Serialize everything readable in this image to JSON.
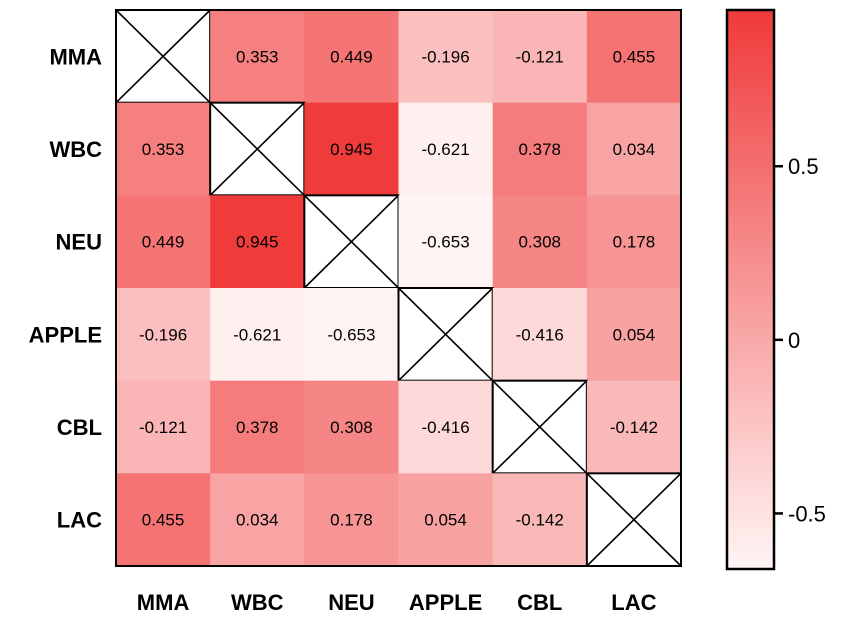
{
  "chart_data": {
    "type": "heatmap",
    "title": "",
    "xlabel": "",
    "ylabel": "",
    "rows": [
      "MMA",
      "WBC",
      "NEU",
      "APPLE",
      "CBL",
      "LAC"
    ],
    "columns": [
      "MMA",
      "WBC",
      "NEU",
      "APPLE",
      "CBL",
      "LAC"
    ],
    "values": [
      [
        null,
        0.353,
        0.449,
        -0.196,
        -0.121,
        0.455
      ],
      [
        0.353,
        null,
        0.945,
        -0.621,
        0.378,
        0.034
      ],
      [
        0.449,
        0.945,
        null,
        -0.653,
        0.308,
        0.178
      ],
      [
        -0.196,
        -0.621,
        -0.653,
        null,
        -0.416,
        0.054
      ],
      [
        -0.121,
        0.378,
        0.308,
        -0.416,
        null,
        -0.142
      ],
      [
        0.455,
        0.034,
        0.178,
        0.054,
        -0.142,
        null
      ]
    ],
    "labels": [
      [
        null,
        "0.353",
        "0.449",
        "-0.196",
        "-0.121",
        "0.455"
      ],
      [
        "0.353",
        null,
        "0.945",
        "-0.621",
        "0.378",
        "0.034"
      ],
      [
        "0.449",
        "0.945",
        null,
        "-0.653",
        "0.308",
        "0.178"
      ],
      [
        "-0.196",
        "-0.621",
        "-0.653",
        null,
        "-0.416",
        "0.054"
      ],
      [
        "-0.121",
        "0.378",
        "0.308",
        "-0.416",
        null,
        "-0.142"
      ],
      [
        "0.455",
        "0.034",
        "0.178",
        "0.054",
        "-0.142",
        null
      ]
    ],
    "diagonal_marker": "cross",
    "colorbar": {
      "range": [
        -0.66,
        0.95
      ],
      "ticks": [
        0.5,
        0,
        -0.5
      ],
      "tick_labels": [
        "0.5",
        "0",
        "-0.5"
      ],
      "placement": "right",
      "color_low": "#fff5f5",
      "color_high": "#f03a3a"
    },
    "grid": false
  }
}
